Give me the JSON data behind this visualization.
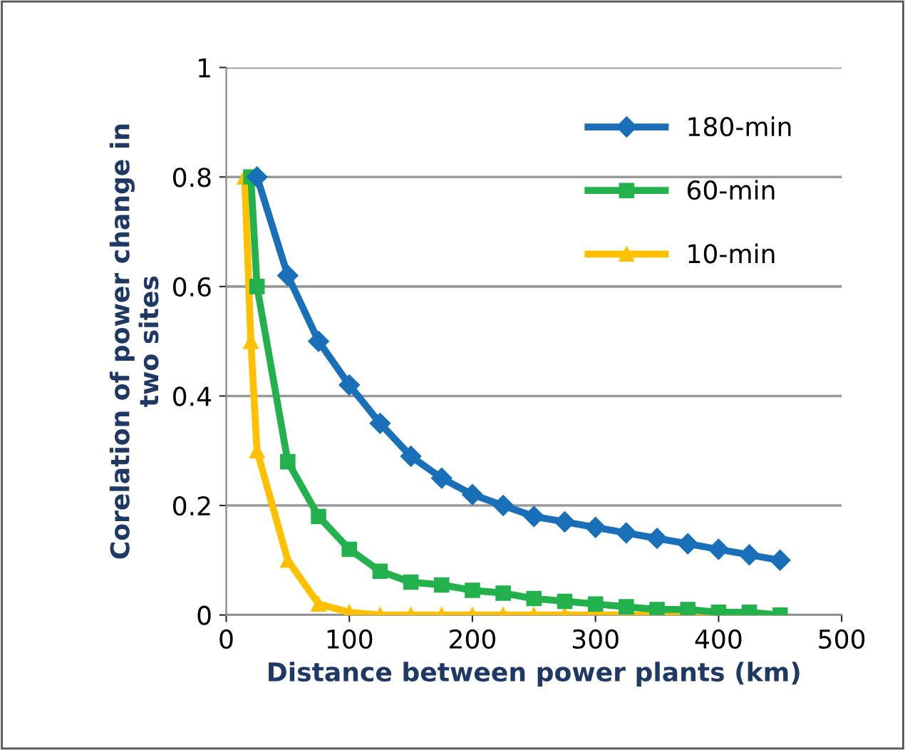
{
  "chart_data": {
    "type": "line",
    "xlabel": "Distance between power plants (km)",
    "ylabel": "Corelation of power change in\ntwo sites",
    "xlim": [
      0,
      500
    ],
    "xticks": [
      0,
      100,
      200,
      300,
      400,
      500
    ],
    "ylim": [
      0,
      1
    ],
    "yticks": [
      0,
      0.2,
      0.4,
      0.6,
      0.8,
      1
    ],
    "grid": "y",
    "legend": "top right",
    "line_style": "solid",
    "series": [
      {
        "name": "180-min",
        "color": "#1a70b8",
        "marker": "diamond",
        "x": [
          25,
          50,
          75,
          100,
          125,
          150,
          175,
          200,
          225,
          250,
          275,
          300,
          325,
          350,
          375,
          400,
          425,
          450
        ],
        "values": [
          0.8,
          0.62,
          0.5,
          0.42,
          0.35,
          0.29,
          0.25,
          0.22,
          0.2,
          0.18,
          0.17,
          0.16,
          0.15,
          0.14,
          0.13,
          0.12,
          0.11,
          0.1
        ]
      },
      {
        "name": "60-min",
        "color": "#22b14c",
        "marker": "square",
        "x": [
          20,
          25,
          50,
          75,
          100,
          125,
          150,
          175,
          200,
          225,
          250,
          275,
          300,
          325,
          350,
          375,
          400,
          425,
          450
        ],
        "values": [
          0.8,
          0.6,
          0.28,
          0.18,
          0.12,
          0.08,
          0.06,
          0.055,
          0.045,
          0.04,
          0.03,
          0.025,
          0.02,
          0.015,
          0.01,
          0.01,
          0.005,
          0.005,
          0.0
        ]
      },
      {
        "name": "10-min",
        "color": "#ffc000",
        "marker": "triangle",
        "x": [
          15,
          20,
          25,
          50,
          75,
          100,
          125,
          150,
          175,
          200,
          225,
          250,
          275,
          300,
          325,
          350,
          375,
          400,
          425,
          450
        ],
        "values": [
          0.8,
          0.5,
          0.3,
          0.1,
          0.02,
          0.005,
          0.0,
          0.0,
          0.0,
          0.0,
          0.0,
          0.0,
          0.0,
          0.0,
          0.0,
          0.0,
          0.0,
          0.0,
          0.0,
          0.0
        ]
      }
    ]
  }
}
